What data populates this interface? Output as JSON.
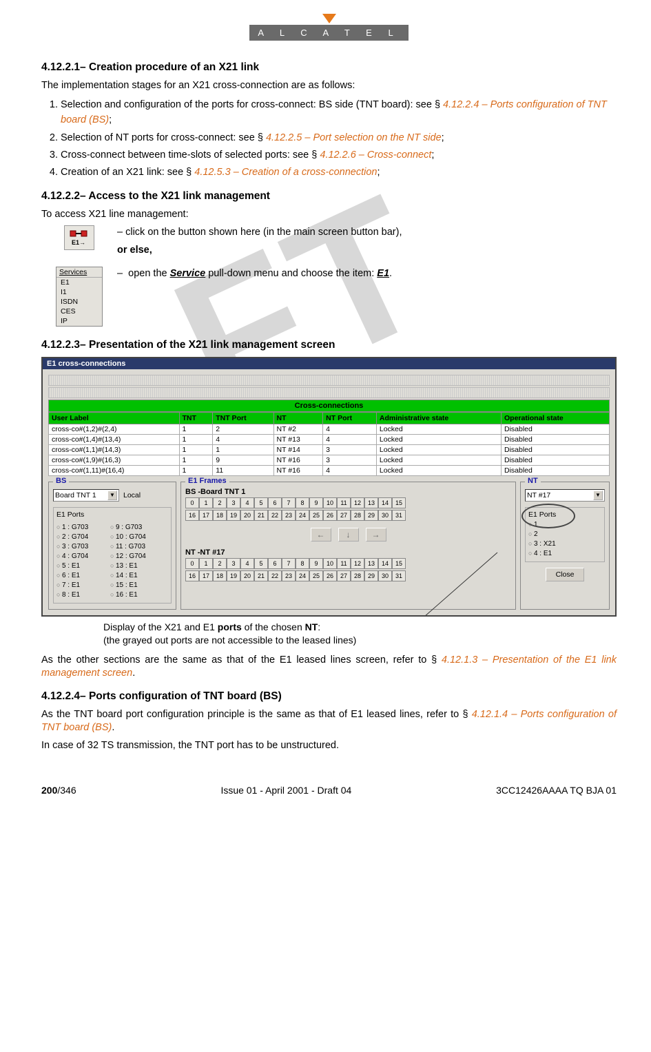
{
  "logo": {
    "text": "A L C A T E L"
  },
  "watermark": "FT",
  "section1": {
    "heading": "4.12.2.1– Creation procedure of an X21 link",
    "intro": "The implementation stages for an X21 cross-connection are as follows:",
    "list": [
      {
        "pre": "Selection and configuration of the ports for cross-connect: BS side (TNT board): see § ",
        "ref": "4.12.2.4 – Ports configuration of TNT board (BS)",
        "post": ";"
      },
      {
        "pre": "Selection of NT ports for cross-connect: see § ",
        "ref": "4.12.2.5 – Port selection on the NT side",
        "post": ";"
      },
      {
        "pre": "Cross-connect between time-slots of selected ports: see § ",
        "ref": "4.12.2.6 – Cross-connect",
        "post": ";"
      },
      {
        "pre": "Creation of an X21 link: see § ",
        "ref": "4.12.5.3 – Creation of a cross-connection",
        "post": ";"
      }
    ]
  },
  "section2": {
    "heading": "4.12.2.2– Access to the X21 link management",
    "intro": "To access X21 line management:",
    "item1": "click on the button shown here (in the main screen button bar),",
    "orelse": "or else,",
    "item2_pre": "open the ",
    "item2_svc": "Service",
    "item2_mid": " pull-down menu and choose the item: ",
    "item2_e1": "E1",
    "item2_post": ".",
    "menu": {
      "title": "Services",
      "items": [
        "E1",
        "I1",
        "ISDN",
        "CES",
        "IP"
      ]
    }
  },
  "section3": {
    "heading": "4.12.2.3– Presentation of the X21 link management screen",
    "window_title": "E1 cross-connections",
    "cc_header": "Cross-connections",
    "columns": [
      "User Label",
      "TNT",
      "TNT Port",
      "NT",
      "NT Port",
      "Administrative state",
      "Operational state"
    ],
    "rows": [
      [
        "cross-co#(1,2)#(2,4)",
        "1",
        "2",
        "NT #2",
        "4",
        "Locked",
        "Disabled"
      ],
      [
        "cross-co#(1,4)#(13,4)",
        "1",
        "4",
        "NT #13",
        "4",
        "Locked",
        "Disabled"
      ],
      [
        "cross-co#(1,1)#(14,3)",
        "1",
        "1",
        "NT #14",
        "3",
        "Locked",
        "Disabled"
      ],
      [
        "cross-co#(1,9)#(16,3)",
        "1",
        "9",
        "NT #16",
        "3",
        "Locked",
        "Disabled"
      ],
      [
        "cross-co#(1,11)#(16,4)",
        "1",
        "11",
        "NT #16",
        "4",
        "Locked",
        "Disabled"
      ]
    ],
    "bs": {
      "title": "BS",
      "select": "Board TNT 1",
      "local": "Local",
      "ports_label": "E1 Ports",
      "left_ports": [
        "1 : G703",
        "2 : G704",
        "3 : G703",
        "4 : G704",
        "5 : E1",
        "6 : E1",
        "7 : E1",
        "8 : E1"
      ],
      "right_ports": [
        "9 : G703",
        "10 : G704",
        "11 : G703",
        "12 : G704",
        "13 : E1",
        "14 : E1",
        "15 : E1",
        "16 : E1"
      ]
    },
    "frames": {
      "title": "E1 Frames",
      "bs_label": "BS -Board TNT 1",
      "nt_label": "NT -NT #17",
      "slots_row1": [
        "0",
        "1",
        "2",
        "3",
        "4",
        "5",
        "6",
        "7",
        "8",
        "9",
        "10",
        "11",
        "12",
        "13",
        "14",
        "15"
      ],
      "slots_row2": [
        "16",
        "17",
        "18",
        "19",
        "20",
        "21",
        "22",
        "23",
        "24",
        "25",
        "26",
        "27",
        "28",
        "29",
        "30",
        "31"
      ],
      "arrows": [
        "←",
        "↓",
        "→"
      ]
    },
    "nt": {
      "title": "NT",
      "select": "NT #17",
      "ports_label": "E1 Ports",
      "ports": [
        "1",
        "2",
        "3 : X21",
        "4 : E1"
      ],
      "close": "Close"
    },
    "caption_l1_pre": "Display of the X21 and E1 ",
    "caption_l1_b1": "ports",
    "caption_l1_mid": " of the chosen ",
    "caption_l1_b2": "NT",
    "caption_l1_post": ":",
    "caption_l2": "(the grayed out ports are not accessible to the leased lines)"
  },
  "para_after": {
    "pre": "As the other sections are the same as that of the E1 leased lines screen, refer to § ",
    "ref": "4.12.1.3 – Presentation of the E1 link management screen",
    "post": "."
  },
  "section4": {
    "heading": "4.12.2.4– Ports configuration of TNT board (BS)",
    "p1_pre": "As the TNT board port configuration principle is the same as that of E1 leased lines, refer to § ",
    "p1_ref": "4.12.1.4 – Ports configuration of TNT board (BS)",
    "p1_post": ".",
    "p2": "In case of 32 TS transmission, the TNT port has to be unstructured."
  },
  "footer": {
    "page_cur": "200",
    "page_total": "/346",
    "center": "Issue 01 - April 2001 - Draft 04",
    "right": "3CC12426AAAA TQ BJA 01"
  }
}
